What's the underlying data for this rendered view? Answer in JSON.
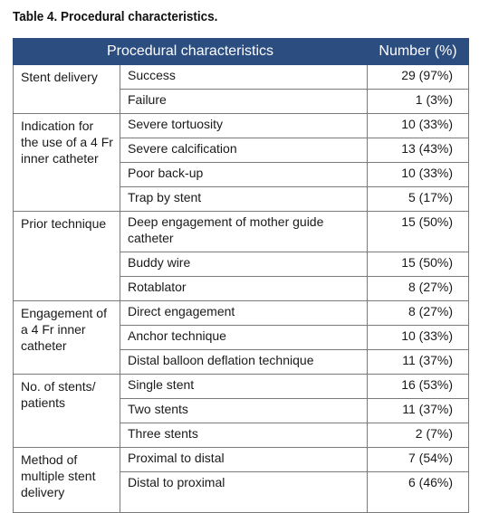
{
  "caption": "Table 4. Procedural characteristics.",
  "headers": {
    "left": "Procedural characteristics",
    "right": "Number (%)"
  },
  "groups": [
    {
      "label": "Stent delivery",
      "rows": [
        {
          "item": "Success",
          "value": "29 (97%)"
        },
        {
          "item": "Failure",
          "value": "1 (3%)"
        }
      ]
    },
    {
      "label": "Indication for the use of a 4 Fr inner catheter",
      "rows": [
        {
          "item": "Severe tortuosity",
          "value": "10 (33%)"
        },
        {
          "item": "Severe calcification",
          "value": "13 (43%)"
        },
        {
          "item": "Poor back-up",
          "value": "10 (33%)"
        },
        {
          "item": "Trap by stent",
          "value": "5 (17%)"
        }
      ]
    },
    {
      "label": "Prior technique",
      "rows": [
        {
          "item": "Deep engagement of mother guide catheter",
          "value": "15 (50%)"
        },
        {
          "item": "Buddy wire",
          "value": "15 (50%)"
        },
        {
          "item": "Rotablator",
          "value": "8 (27%)"
        }
      ]
    },
    {
      "label": "Engagement of a 4 Fr inner catheter",
      "rows": [
        {
          "item": "Direct engagement",
          "value": "8 (27%)"
        },
        {
          "item": "Anchor technique",
          "value": "10 (33%)"
        },
        {
          "item": "Distal balloon deflation technique",
          "value": "11 (37%)"
        }
      ]
    },
    {
      "label": "No. of stents/ patients",
      "rows": [
        {
          "item": "Single stent",
          "value": "16 (53%)"
        },
        {
          "item": "Two stents",
          "value": "11 (37%)"
        },
        {
          "item": "Three stents",
          "value": "2 (7%)"
        }
      ]
    },
    {
      "label": "Method of multiple stent delivery",
      "rows": [
        {
          "item": "Proximal to distal",
          "value": "7 (54%)"
        },
        {
          "item": "Distal to proximal",
          "value": "6 (46%)"
        }
      ]
    }
  ]
}
